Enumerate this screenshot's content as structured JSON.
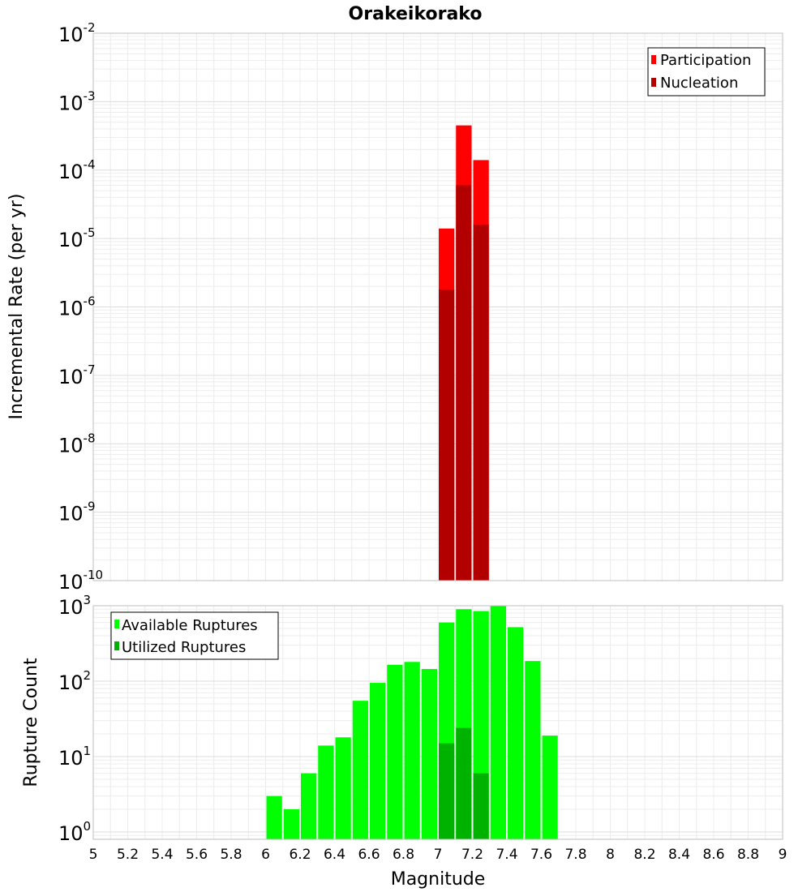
{
  "chart_data": [
    {
      "type": "bar",
      "title": "Orakeikorako",
      "xlabel": "",
      "ylabel": "Incremental Rate (per yr)",
      "yscale": "log",
      "ylim": [
        1e-10,
        0.01
      ],
      "xlim": [
        5,
        9
      ],
      "grid": true,
      "legend": "top-right",
      "series": [
        {
          "name": "Participation",
          "color": "#ff0000",
          "x": [
            7.05,
            7.15,
            7.25
          ],
          "values": [
            1.4e-05,
            0.00045,
            0.00014
          ]
        },
        {
          "name": "Nucleation",
          "color": "#b20000",
          "x": [
            7.05,
            7.15,
            7.25
          ],
          "values": [
            1.8e-06,
            6e-05,
            1.6e-05
          ]
        }
      ]
    },
    {
      "type": "bar",
      "title": "",
      "xlabel": "Magnitude",
      "ylabel": "Rupture Count",
      "yscale": "log",
      "ylim": [
        0.8,
        1000
      ],
      "xlim": [
        5,
        9
      ],
      "grid": true,
      "legend": "top-left",
      "x_ticks": [
        "5",
        "5.2",
        "5.4",
        "5.6",
        "5.8",
        "6",
        "6.2",
        "6.4",
        "6.6",
        "6.8",
        "7",
        "7.2",
        "7.4",
        "7.6",
        "7.8",
        "8",
        "8.2",
        "8.4",
        "8.6",
        "8.8",
        "9"
      ],
      "series": [
        {
          "name": "Available Ruptures",
          "color": "#00ff00",
          "x": [
            6.05,
            6.15,
            6.25,
            6.35,
            6.45,
            6.55,
            6.65,
            6.75,
            6.85,
            6.95,
            7.05,
            7.15,
            7.25,
            7.35,
            7.45,
            7.55,
            7.65
          ],
          "values": [
            3,
            2,
            6,
            14,
            18,
            55,
            95,
            165,
            180,
            145,
            600,
            900,
            850,
            1000,
            520,
            185,
            19
          ]
        },
        {
          "name": "Utilized Ruptures",
          "color": "#00b200",
          "x": [
            7.05,
            7.15,
            7.25
          ],
          "values": [
            15,
            24,
            6
          ]
        }
      ]
    }
  ],
  "top_y_ticks": [
    {
      "base": "10",
      "exp": "-2"
    },
    {
      "base": "10",
      "exp": "-3"
    },
    {
      "base": "10",
      "exp": "-4"
    },
    {
      "base": "10",
      "exp": "-5"
    },
    {
      "base": "10",
      "exp": "-6"
    },
    {
      "base": "10",
      "exp": "-7"
    },
    {
      "base": "10",
      "exp": "-8"
    },
    {
      "base": "10",
      "exp": "-9"
    },
    {
      "base": "10",
      "exp": "-10"
    }
  ],
  "bottom_y_ticks": [
    {
      "base": "10",
      "exp": "3"
    },
    {
      "base": "10",
      "exp": "2"
    },
    {
      "base": "10",
      "exp": "1"
    },
    {
      "base": "10",
      "exp": "0"
    }
  ]
}
